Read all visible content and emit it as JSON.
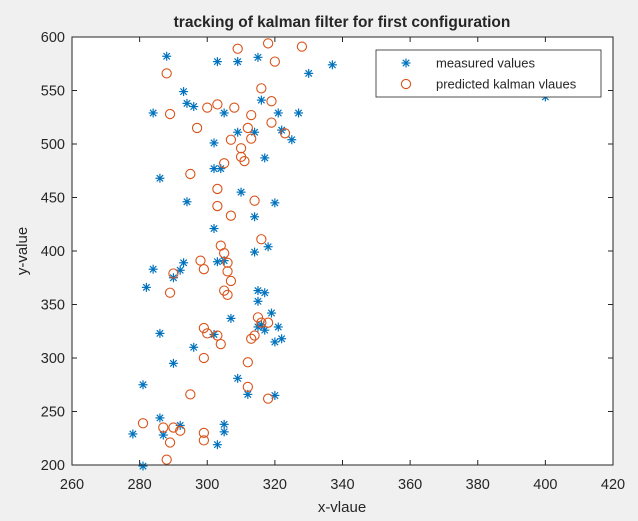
{
  "chart_data": {
    "type": "scatter",
    "title": "tracking of kalman filter for first configuration",
    "xlabel": "x-vlaue",
    "ylabel": "y-value",
    "xlim": [
      260,
      420
    ],
    "ylim": [
      200,
      600
    ],
    "xticks": [
      260,
      280,
      300,
      320,
      340,
      360,
      380,
      400,
      420
    ],
    "yticks": [
      200,
      250,
      300,
      350,
      400,
      450,
      500,
      550,
      600
    ],
    "grid": false,
    "legend_position": "top-right",
    "series": [
      {
        "name": "measured values",
        "marker": "asterisk",
        "color": "#0072bd",
        "points": [
          [
            281,
            199
          ],
          [
            278,
            229
          ],
          [
            287,
            228
          ],
          [
            305,
            238
          ],
          [
            305,
            231
          ],
          [
            303,
            219
          ],
          [
            292,
            237
          ],
          [
            286,
            244
          ],
          [
            281,
            275
          ],
          [
            290,
            295
          ],
          [
            296,
            310
          ],
          [
            309,
            281
          ],
          [
            312,
            266
          ],
          [
            320,
            265
          ],
          [
            286,
            323
          ],
          [
            302,
            322
          ],
          [
            307,
            337
          ],
          [
            315,
            329
          ],
          [
            316,
            331
          ],
          [
            317,
            326
          ],
          [
            319,
            342
          ],
          [
            320,
            315
          ],
          [
            321,
            329
          ],
          [
            322,
            318
          ],
          [
            282,
            366
          ],
          [
            284,
            383
          ],
          [
            290,
            375
          ],
          [
            293,
            389
          ],
          [
            303,
            390
          ],
          [
            315,
            353
          ],
          [
            315,
            363
          ],
          [
            317,
            361
          ],
          [
            314,
            399
          ],
          [
            318,
            404
          ],
          [
            302,
            421
          ],
          [
            305,
            391
          ],
          [
            292,
            382
          ],
          [
            294,
            446
          ],
          [
            286,
            468
          ],
          [
            302,
            477
          ],
          [
            304,
            477
          ],
          [
            310,
            455
          ],
          [
            314,
            432
          ],
          [
            320,
            445
          ],
          [
            302,
            501
          ],
          [
            309,
            511
          ],
          [
            314,
            511
          ],
          [
            317,
            487
          ],
          [
            321,
            529
          ],
          [
            322,
            513
          ],
          [
            325,
            504
          ],
          [
            327,
            529
          ],
          [
            284,
            529
          ],
          [
            293,
            549
          ],
          [
            294,
            538
          ],
          [
            296,
            535
          ],
          [
            305,
            529
          ],
          [
            316,
            541
          ],
          [
            303,
            577
          ],
          [
            309,
            577
          ],
          [
            315,
            581
          ],
          [
            330,
            566
          ],
          [
            337,
            574
          ],
          [
            288,
            582
          ],
          [
            400,
            544
          ]
        ]
      },
      {
        "name": "predicted kalman vlaues",
        "marker": "circle",
        "color": "#d95319",
        "points": [
          [
            288,
            205
          ],
          [
            281,
            239
          ],
          [
            287,
            235
          ],
          [
            289,
            221
          ],
          [
            290,
            235
          ],
          [
            292,
            232
          ],
          [
            299,
            230
          ],
          [
            299,
            223
          ],
          [
            295,
            266
          ],
          [
            312,
            273
          ],
          [
            318,
            262
          ],
          [
            299,
            300
          ],
          [
            312,
            296
          ],
          [
            299,
            328
          ],
          [
            300,
            323
          ],
          [
            303,
            321
          ],
          [
            304,
            313
          ],
          [
            313,
            318
          ],
          [
            314,
            321
          ],
          [
            315,
            338
          ],
          [
            316,
            333
          ],
          [
            318,
            333
          ],
          [
            299,
            383
          ],
          [
            306,
            389
          ],
          [
            306,
            381
          ],
          [
            307,
            372
          ],
          [
            298,
            391
          ],
          [
            290,
            379
          ],
          [
            289,
            361
          ],
          [
            305,
            363
          ],
          [
            306,
            359
          ],
          [
            304,
            405
          ],
          [
            305,
            398
          ],
          [
            316,
            411
          ],
          [
            303,
            442
          ],
          [
            303,
            458
          ],
          [
            307,
            433
          ],
          [
            314,
            447
          ],
          [
            295,
            472
          ],
          [
            305,
            482
          ],
          [
            310,
            488
          ],
          [
            311,
            484
          ],
          [
            310,
            496
          ],
          [
            307,
            504
          ],
          [
            313,
            505
          ],
          [
            312,
            515
          ],
          [
            313,
            527
          ],
          [
            319,
            520
          ],
          [
            323,
            510
          ],
          [
            297,
            515
          ],
          [
            289,
            528
          ],
          [
            300,
            534
          ],
          [
            303,
            537
          ],
          [
            308,
            534
          ],
          [
            316,
            552
          ],
          [
            319,
            540
          ],
          [
            309,
            589
          ],
          [
            318,
            594
          ],
          [
            320,
            577
          ],
          [
            328,
            591
          ],
          [
            288,
            566
          ]
        ]
      }
    ]
  }
}
